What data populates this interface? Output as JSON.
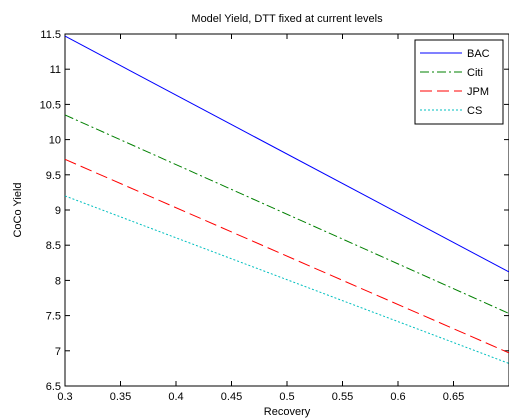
{
  "chart_data": {
    "type": "line",
    "title": "Model Yield, DTT fixed at current levels",
    "xlabel": "Recovery",
    "ylabel": "CoCo Yield",
    "xlim": [
      0.3,
      0.7
    ],
    "ylim": [
      6.5,
      11.5
    ],
    "xticks": [
      0.3,
      0.35,
      0.4,
      0.45,
      0.5,
      0.55,
      0.6,
      0.65
    ],
    "xtick_labels": [
      "0.3",
      "0.35",
      "0.4",
      "0.45",
      "0.5",
      "0.55",
      "0.6",
      "0.65"
    ],
    "yticks": [
      6.5,
      7,
      7.5,
      8,
      8.5,
      9,
      9.5,
      10,
      10.5,
      11,
      11.5
    ],
    "ytick_labels": [
      "6.5",
      "7",
      "7.5",
      "8",
      "8.5",
      "9",
      "9.5",
      "10",
      "10.5",
      "11",
      "11.5"
    ],
    "grid": false,
    "legend_position": "top-right",
    "series": [
      {
        "name": "BAC",
        "color": "#0000ff",
        "style": "solid",
        "x": [
          0.3,
          0.7
        ],
        "y": [
          11.47,
          8.12
        ]
      },
      {
        "name": "Citi",
        "color": "#008000",
        "style": "dashdot",
        "x": [
          0.3,
          0.7
        ],
        "y": [
          10.35,
          7.53
        ]
      },
      {
        "name": "JPM",
        "color": "#ff0000",
        "style": "dashed",
        "x": [
          0.3,
          0.7
        ],
        "y": [
          9.72,
          6.97
        ]
      },
      {
        "name": "CS",
        "color": "#00bfbf",
        "style": "dotted",
        "x": [
          0.3,
          0.7
        ],
        "y": [
          9.2,
          6.82
        ]
      }
    ]
  }
}
